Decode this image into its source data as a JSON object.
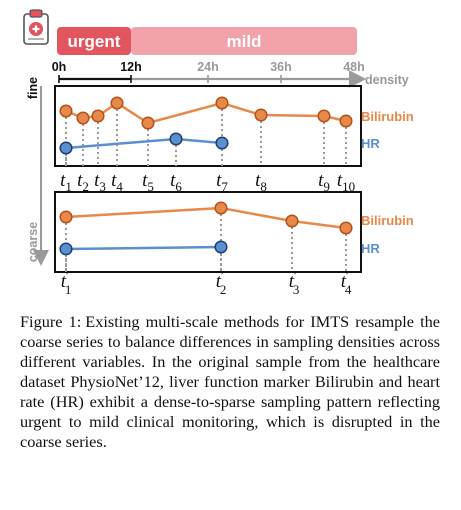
{
  "header": {
    "urgent_label": "urgent",
    "mild_label": "mild",
    "icon": "clipboard-medical-icon",
    "urgent_color": "#e2545e",
    "mild_color": "#f2a2aa"
  },
  "axis": {
    "ticks": [
      "0h",
      "12h",
      "24h",
      "36h",
      "48h"
    ],
    "density_label": "density",
    "fine_label": "fine",
    "coarse_label": "coarse"
  },
  "fine": {
    "bilirubin_label": "Bilirubin",
    "hr_label": "HR",
    "times": [
      {
        "base": "t",
        "sub": "1"
      },
      {
        "base": "t",
        "sub": "2"
      },
      {
        "base": "t",
        "sub": "3"
      },
      {
        "base": "t",
        "sub": "4"
      },
      {
        "base": "t",
        "sub": "5"
      },
      {
        "base": "t",
        "sub": "6"
      },
      {
        "base": "t",
        "sub": "7"
      },
      {
        "base": "t",
        "sub": "8"
      },
      {
        "base": "t",
        "sub": "9"
      },
      {
        "base": "t",
        "sub": "10"
      }
    ]
  },
  "coarse": {
    "bilirubin_label": "Bilirubin",
    "hr_label": "HR",
    "times": [
      {
        "base": "t",
        "prime": "′",
        "sub": "1"
      },
      {
        "base": "t",
        "prime": "′",
        "sub": "2"
      },
      {
        "base": "t",
        "prime": "′",
        "sub": "3"
      },
      {
        "base": "t",
        "prime": "′",
        "sub": "4"
      }
    ]
  },
  "colors": {
    "bilirubin": "#e8894a",
    "bilirubin_stroke": "#b4501a",
    "hr": "#5b8fd0",
    "hr_stroke": "#1f3f73"
  },
  "caption": {
    "label": "Figure 1:",
    "text": "Existing multi-scale methods for IMTS resample the coarse series to balance differences in sampling densities across different variables. In the original sample from the healthcare dataset PhysioNet’12, liver function marker Bilirubin and heart rate (HR) exhibit a dense-to-sparse sampling pattern reflecting urgent to mild clinical monitoring, which is disrupted in the coarse series."
  }
}
